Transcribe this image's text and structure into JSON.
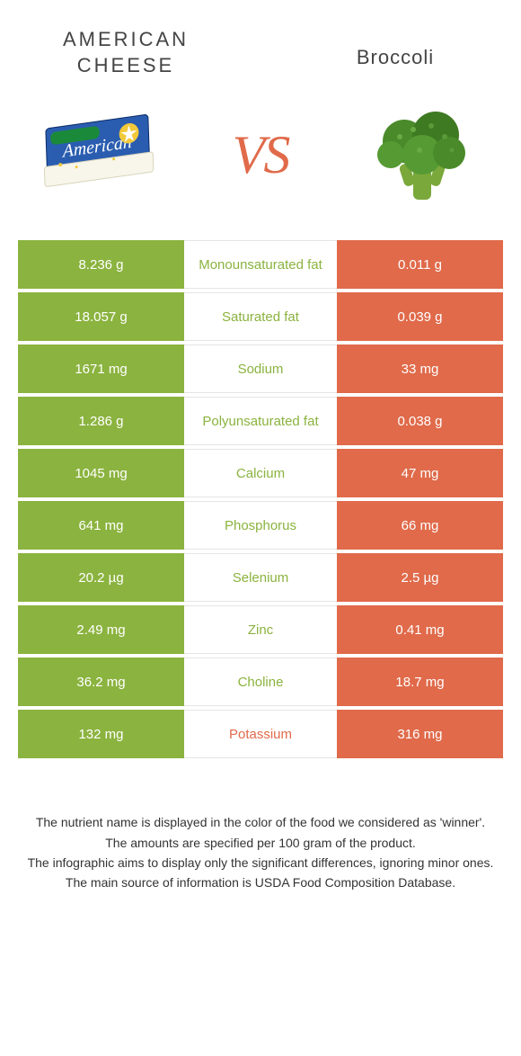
{
  "header": {
    "left_title_l1": "AMERICAN",
    "left_title_l2": "CHEESE",
    "right_title": "Broccoli",
    "vs": "VS"
  },
  "colors": {
    "green": "#8bb33f",
    "orange": "#e06a4a",
    "text": "#333333",
    "bg": "#ffffff",
    "border": "#e5e5e5"
  },
  "left_color": "#8bb33f",
  "right_color": "#e06a4a",
  "table": {
    "type": "infographic-comparison-table",
    "rows": [
      {
        "left": "8.236 g",
        "label": "Monounsaturated fat",
        "right": "0.011 g",
        "winner": "left"
      },
      {
        "left": "18.057 g",
        "label": "Saturated fat",
        "right": "0.039 g",
        "winner": "left"
      },
      {
        "left": "1671 mg",
        "label": "Sodium",
        "right": "33 mg",
        "winner": "left"
      },
      {
        "left": "1.286 g",
        "label": "Polyunsaturated fat",
        "right": "0.038 g",
        "winner": "left"
      },
      {
        "left": "1045 mg",
        "label": "Calcium",
        "right": "47 mg",
        "winner": "left"
      },
      {
        "left": "641 mg",
        "label": "Phosphorus",
        "right": "66 mg",
        "winner": "left"
      },
      {
        "left": "20.2 µg",
        "label": "Selenium",
        "right": "2.5 µg",
        "winner": "left"
      },
      {
        "left": "2.49 mg",
        "label": "Zinc",
        "right": "0.41 mg",
        "winner": "left"
      },
      {
        "left": "36.2 mg",
        "label": "Choline",
        "right": "18.7 mg",
        "winner": "left"
      },
      {
        "left": "132 mg",
        "label": "Potassium",
        "right": "316 mg",
        "winner": "right"
      }
    ]
  },
  "footer": {
    "line1": "The nutrient name is displayed in the color of the food we considered as 'winner'.",
    "line2": "The amounts are specified per 100 gram of the product.",
    "line3": "The infographic aims to display only the significant differences, ignoring minor ones.",
    "line4": "The main source of information is USDA Food Composition Database."
  }
}
